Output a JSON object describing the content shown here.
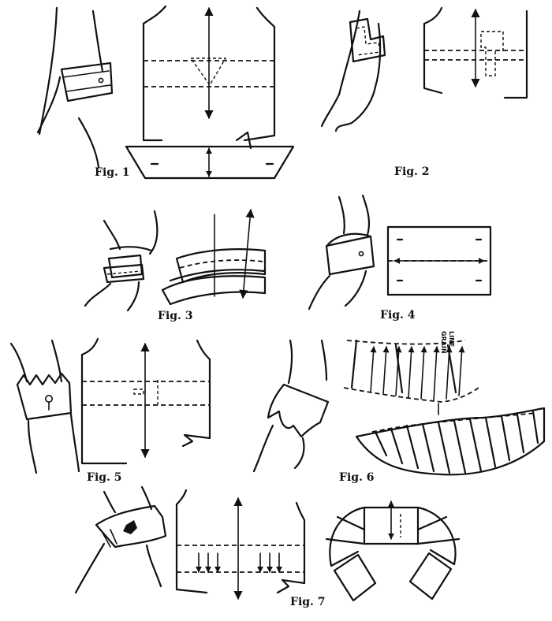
{
  "figures": [
    {
      "caption": "Fig. 1"
    },
    {
      "caption": "Fig. 2"
    },
    {
      "caption": "Fig. 3"
    },
    {
      "caption": "Fig. 4"
    },
    {
      "caption": "Fig. 5"
    },
    {
      "caption": "Fig. 6"
    },
    {
      "caption": "Fig. 7"
    }
  ],
  "grain_label": [
    "GRAIN",
    "LINE"
  ],
  "colors": {
    "ink": "#111111",
    "paper": "#ffffff"
  }
}
